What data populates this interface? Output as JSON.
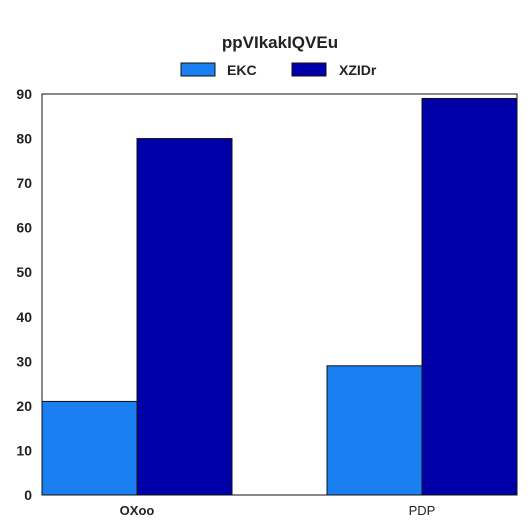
{
  "chart_data": {
    "type": "bar",
    "title": "ppVIkakIQVEu",
    "xlabel": "",
    "ylabel": "",
    "categories": [
      "OXoo",
      "PDP"
    ],
    "series": [
      {
        "name": "EKC",
        "values": [
          21,
          29
        ],
        "color": "#1a7ff0"
      },
      {
        "name": "XZIDr",
        "values": [
          80,
          89
        ],
        "color": "#0000a8"
      }
    ],
    "ylim": [
      0,
      90
    ],
    "yticks": [
      0,
      10,
      20,
      30,
      40,
      50,
      60,
      70,
      80,
      90
    ],
    "grid": false,
    "legend": "top-center"
  }
}
